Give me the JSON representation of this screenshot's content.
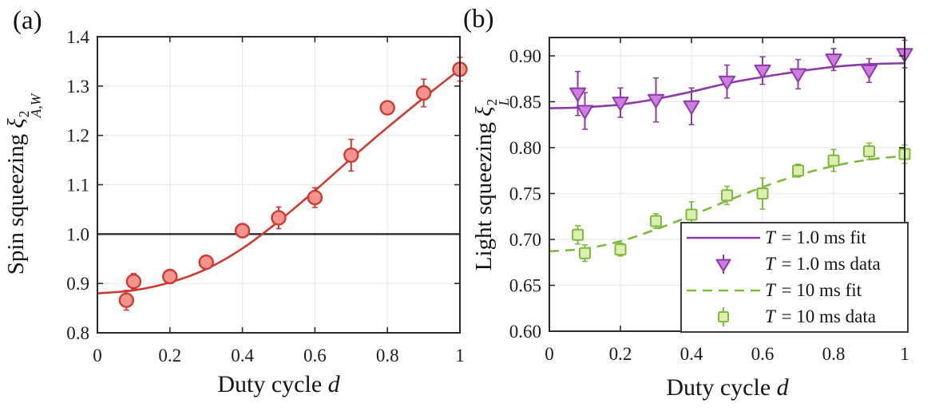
{
  "style": {
    "background_color": "#ffffff",
    "frame_color": "#2a2a2a",
    "grid_color": "#e8e8e8",
    "reference_line_color": "#2b2b2b",
    "tick_label_color": "#1c1c1c"
  },
  "chart_data": [
    {
      "type": "scatter",
      "panel_tag": "(a)",
      "xlabel_prefix": "Duty cycle",
      "xlabel_var": "d",
      "ylabel_prefix": "Spin squeezing",
      "ylabel_symbol": "ξ",
      "ylabel_sup": "2",
      "ylabel_sub": "A,W",
      "xlim": [
        0,
        1
      ],
      "ylim": [
        0.8,
        1.4
      ],
      "xticks": {
        "values": [
          0,
          0.2,
          0.4,
          0.6,
          0.8,
          1
        ],
        "labels": [
          "0",
          "0.2",
          "0.4",
          "0.6",
          "0.8",
          "1"
        ]
      },
      "yticks": {
        "values": [
          0.8,
          0.9,
          1.0,
          1.1,
          1.2,
          1.3,
          1.4
        ],
        "labels": [
          "0.8",
          "0.9",
          "1.0",
          "1.1",
          "1.2",
          "1.3",
          "1.4"
        ]
      },
      "grid": true,
      "reference_line_y": 1.0,
      "series": [
        {
          "name": "spin-squeezing-fit",
          "type": "line",
          "style": "solid",
          "color": "#cc3b33",
          "x": [
            0,
            0.1,
            0.2,
            0.3,
            0.4,
            0.5,
            0.6,
            0.7,
            0.8,
            0.9,
            1.0
          ],
          "y": [
            0.88,
            0.886,
            0.902,
            0.929,
            0.971,
            1.026,
            1.088,
            1.153,
            1.216,
            1.276,
            1.334
          ]
        },
        {
          "name": "spin-squeezing-data",
          "type": "scatter",
          "marker": "circle",
          "line_color": "#cc3b33",
          "fill_color": "#f4948d",
          "x": [
            0.08,
            0.1,
            0.2,
            0.3,
            0.4,
            0.5,
            0.6,
            0.7,
            0.8,
            0.9,
            1.0
          ],
          "y": [
            0.866,
            0.904,
            0.914,
            0.943,
            1.007,
            1.033,
            1.074,
            1.16,
            1.256,
            1.286,
            1.334
          ],
          "yerr": [
            0.02,
            0.016,
            0.014,
            0.01,
            0.014,
            0.022,
            0.02,
            0.032,
            0.01,
            0.028,
            0.024
          ]
        }
      ]
    },
    {
      "type": "scatter",
      "panel_tag": "(b)",
      "xlabel_prefix": "Duty cycle",
      "xlabel_var": "d",
      "ylabel_prefix": "Light squeezing",
      "ylabel_symbol": "ξ",
      "ylabel_sup": "2",
      "ylabel_sub": "L",
      "xlim": [
        0,
        1
      ],
      "ylim": [
        0.6,
        0.92
      ],
      "xticks": {
        "values": [
          0,
          0.2,
          0.4,
          0.6,
          0.8,
          1
        ],
        "labels": [
          "0",
          "0.2",
          "0.4",
          "0.6",
          "0.8",
          "1"
        ]
      },
      "yticks": {
        "values": [
          0.6,
          0.65,
          0.7,
          0.75,
          0.8,
          0.85,
          0.9
        ],
        "labels": [
          "0.60",
          "0.65",
          "0.70",
          "0.75",
          "0.80",
          "0.85",
          "0.90"
        ]
      },
      "grid": true,
      "reference_line_y": null,
      "series": [
        {
          "name": "t1ms-fit",
          "type": "line",
          "style": "solid",
          "color": "#8b3aa8",
          "x": [
            0,
            0.1,
            0.2,
            0.3,
            0.4,
            0.5,
            0.6,
            0.7,
            0.8,
            0.9,
            1.0
          ],
          "y": [
            0.843,
            0.844,
            0.847,
            0.853,
            0.861,
            0.87,
            0.877,
            0.883,
            0.888,
            0.891,
            0.892
          ]
        },
        {
          "name": "t10ms-fit",
          "type": "line",
          "style": "dashed",
          "color": "#7db93c",
          "x": [
            0,
            0.1,
            0.2,
            0.3,
            0.4,
            0.5,
            0.6,
            0.7,
            0.8,
            0.9,
            1.0
          ],
          "y": [
            0.687,
            0.69,
            0.698,
            0.711,
            0.726,
            0.742,
            0.757,
            0.77,
            0.78,
            0.787,
            0.791
          ]
        },
        {
          "name": "t1ms-data",
          "type": "scatter",
          "marker": "triangle-down",
          "line_color": "#8b3aa8",
          "fill_color": "#cf7ce2",
          "x": [
            0.08,
            0.1,
            0.2,
            0.3,
            0.4,
            0.5,
            0.6,
            0.7,
            0.8,
            0.9,
            1.0
          ],
          "y": [
            0.859,
            0.84,
            0.849,
            0.852,
            0.845,
            0.872,
            0.884,
            0.88,
            0.896,
            0.884,
            0.902
          ],
          "yerr": [
            0.024,
            0.02,
            0.016,
            0.024,
            0.02,
            0.018,
            0.015,
            0.016,
            0.012,
            0.013,
            0.015
          ]
        },
        {
          "name": "t10ms-data",
          "type": "scatter",
          "marker": "square",
          "line_color": "#7db93c",
          "fill_color": "#dcefae",
          "x": [
            0.08,
            0.1,
            0.2,
            0.3,
            0.4,
            0.5,
            0.6,
            0.7,
            0.8,
            0.9,
            1.0
          ],
          "y": [
            0.705,
            0.685,
            0.689,
            0.72,
            0.727,
            0.748,
            0.75,
            0.775,
            0.786,
            0.796,
            0.793
          ],
          "yerr": [
            0.01,
            0.009,
            0.007,
            0.008,
            0.014,
            0.01,
            0.017,
            0.007,
            0.012,
            0.009,
            0.01
          ]
        }
      ],
      "legend": {
        "position": "bottom-right",
        "items": [
          {
            "icon": "line-solid",
            "color": "#8b3aa8",
            "fill": "#cf7ce2",
            "label_var": "T",
            "label_text": "= 1.0 ms fit"
          },
          {
            "icon": "marker-triangle",
            "color": "#8b3aa8",
            "fill": "#cf7ce2",
            "label_var": "T",
            "label_text": "= 1.0 ms data"
          },
          {
            "icon": "line-dashed",
            "color": "#7db93c",
            "fill": "#dcefae",
            "label_var": "T",
            "label_text": "= 10 ms fit"
          },
          {
            "icon": "marker-square",
            "color": "#7db93c",
            "fill": "#dcefae",
            "label_var": "T",
            "label_text": "= 10 ms data"
          }
        ]
      }
    }
  ]
}
